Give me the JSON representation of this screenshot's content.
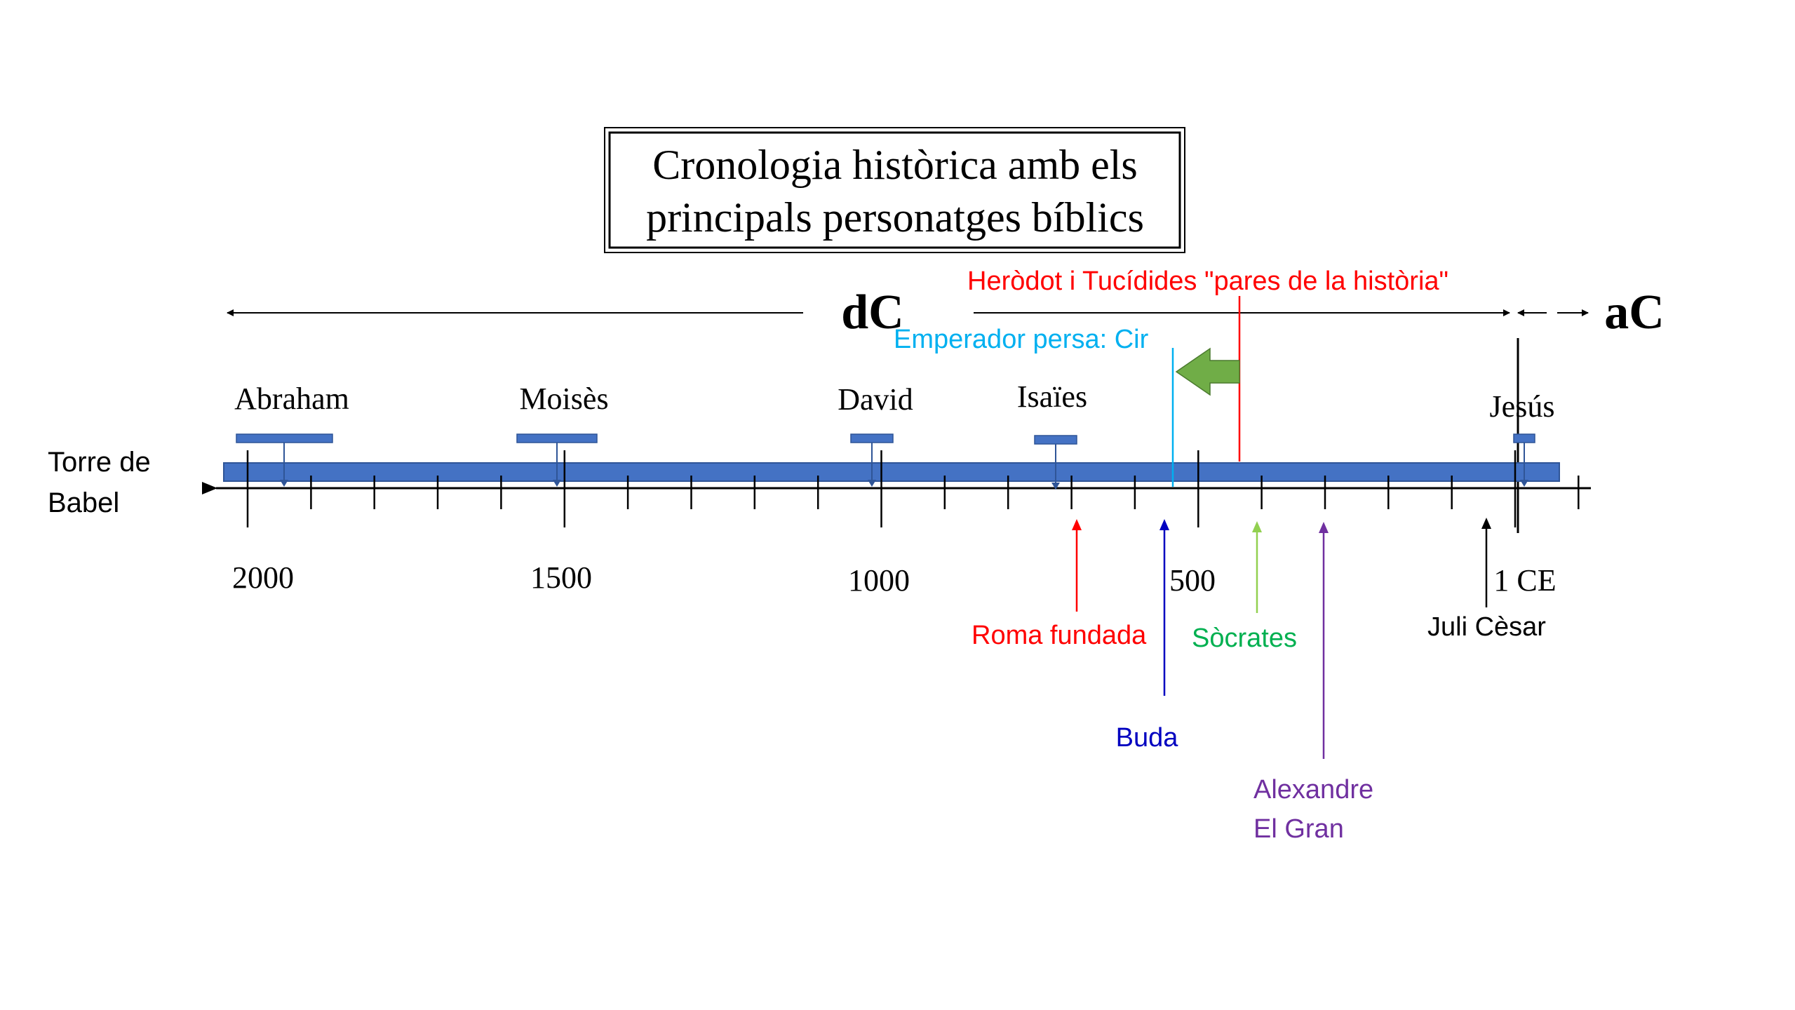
{
  "title": {
    "line1": "Cronologia històrica amb els",
    "line2": "principals personatges bíblics"
  },
  "era_labels": {
    "dc": "dC",
    "ac": "aC"
  },
  "left_label": {
    "line1": "Torre de",
    "line2": "Babel"
  },
  "axis_ticks": [
    {
      "label": "2000",
      "value": 2000
    },
    {
      "label": "1500",
      "value": 1500
    },
    {
      "label": "1000",
      "value": 1000
    },
    {
      "label": "500",
      "value": 500
    },
    {
      "label": "1 CE",
      "value": 0
    }
  ],
  "bible_figures": [
    {
      "name": "Abraham"
    },
    {
      "name": "Moisès"
    },
    {
      "name": "David"
    },
    {
      "name": "Isaïes"
    },
    {
      "name": "Jesús"
    }
  ],
  "events_above": [
    {
      "label": "Emperador persa: Cir",
      "color": "#00b0f0"
    },
    {
      "label": "Heròdot i Tucídides \"pares de la història\"",
      "color": "#ff0000"
    }
  ],
  "events_below": [
    {
      "label": "Roma fundada",
      "color": "#ff0000"
    },
    {
      "label": "Buda",
      "color": "#0000c0"
    },
    {
      "label": "Sòcrates",
      "color": "#00b050"
    },
    {
      "label": "Alexandre",
      "label2": "El Gran",
      "color": "#7030a0"
    },
    {
      "label": "Juli Cèsar",
      "color": "#000000"
    }
  ],
  "colors": {
    "bar": "#4472c4",
    "bar_stroke": "#2f5597",
    "arrow_green": "#70ad47"
  }
}
